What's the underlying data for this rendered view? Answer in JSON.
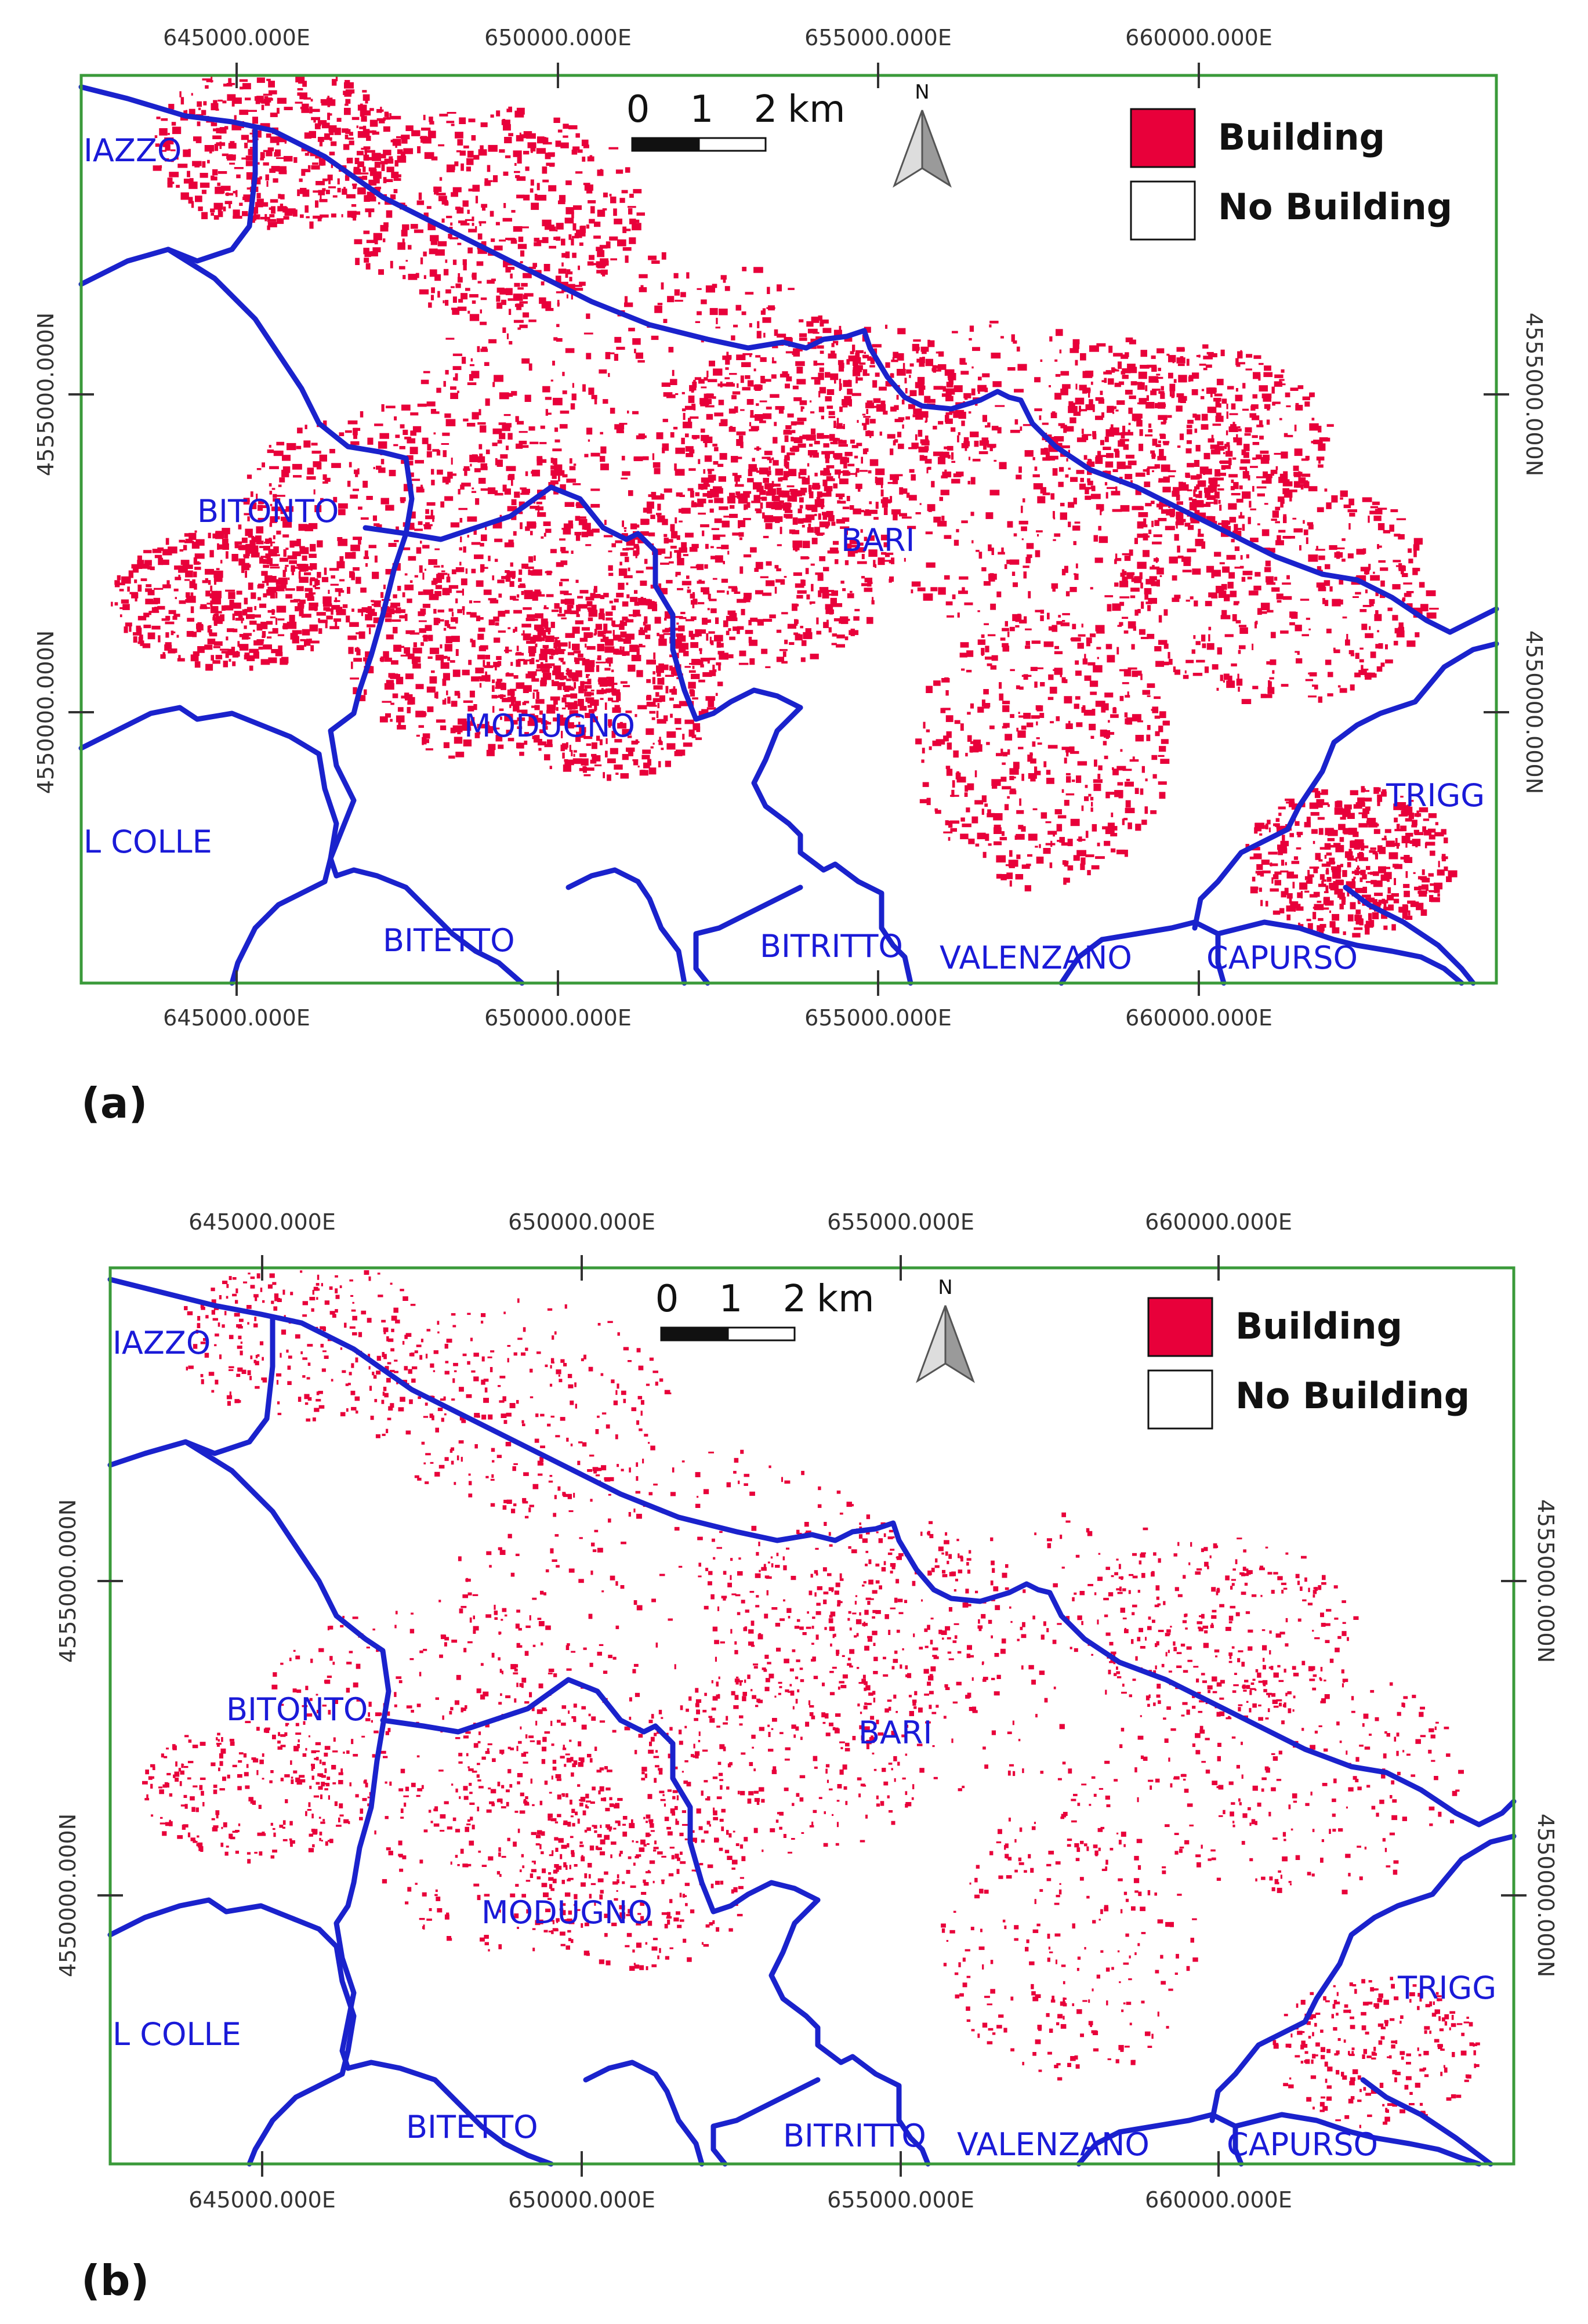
{
  "panels": [
    {
      "label": "(a)",
      "easting_labels": [
        "645000.000E",
        "650000.000E",
        "655000.000E",
        "660000.000E"
      ],
      "northing_labels": [
        "4555000.000N",
        "4550000.000N"
      ],
      "scale": {
        "t0": "0",
        "t1": "1",
        "t2": "2",
        "unit": "km"
      },
      "north": "N",
      "legend": {
        "building": "Building",
        "no_building": "No Building"
      },
      "places": [
        "IAZZO",
        "BITONTO",
        "BARI",
        "MODUGNO",
        "L COLLE",
        "BITETTO",
        "BITRITTO",
        "VALENZANO",
        "CAPURSO",
        "TRIGG"
      ],
      "building_density": "high"
    },
    {
      "label": "(b)",
      "easting_labels": [
        "645000.000E",
        "650000.000E",
        "655000.000E",
        "660000.000E"
      ],
      "northing_labels": [
        "4555000.000N",
        "4550000.000N"
      ],
      "scale": {
        "t0": "0",
        "t1": "1",
        "t2": "2",
        "unit": "km"
      },
      "north": "N",
      "legend": {
        "building": "Building",
        "no_building": "No Building"
      },
      "places": [
        "IAZZO",
        "BITONTO",
        "BARI",
        "MODUGNO",
        "L COLLE",
        "BITETTO",
        "BITRITTO",
        "VALENZANO",
        "CAPURSO",
        "TRIGG"
      ],
      "building_density": "low"
    }
  ],
  "colors": {
    "building": "#e8003a",
    "boundary": "#1a22cc",
    "frame": "#3a9a3a",
    "place_label": "#1a1ad8"
  }
}
